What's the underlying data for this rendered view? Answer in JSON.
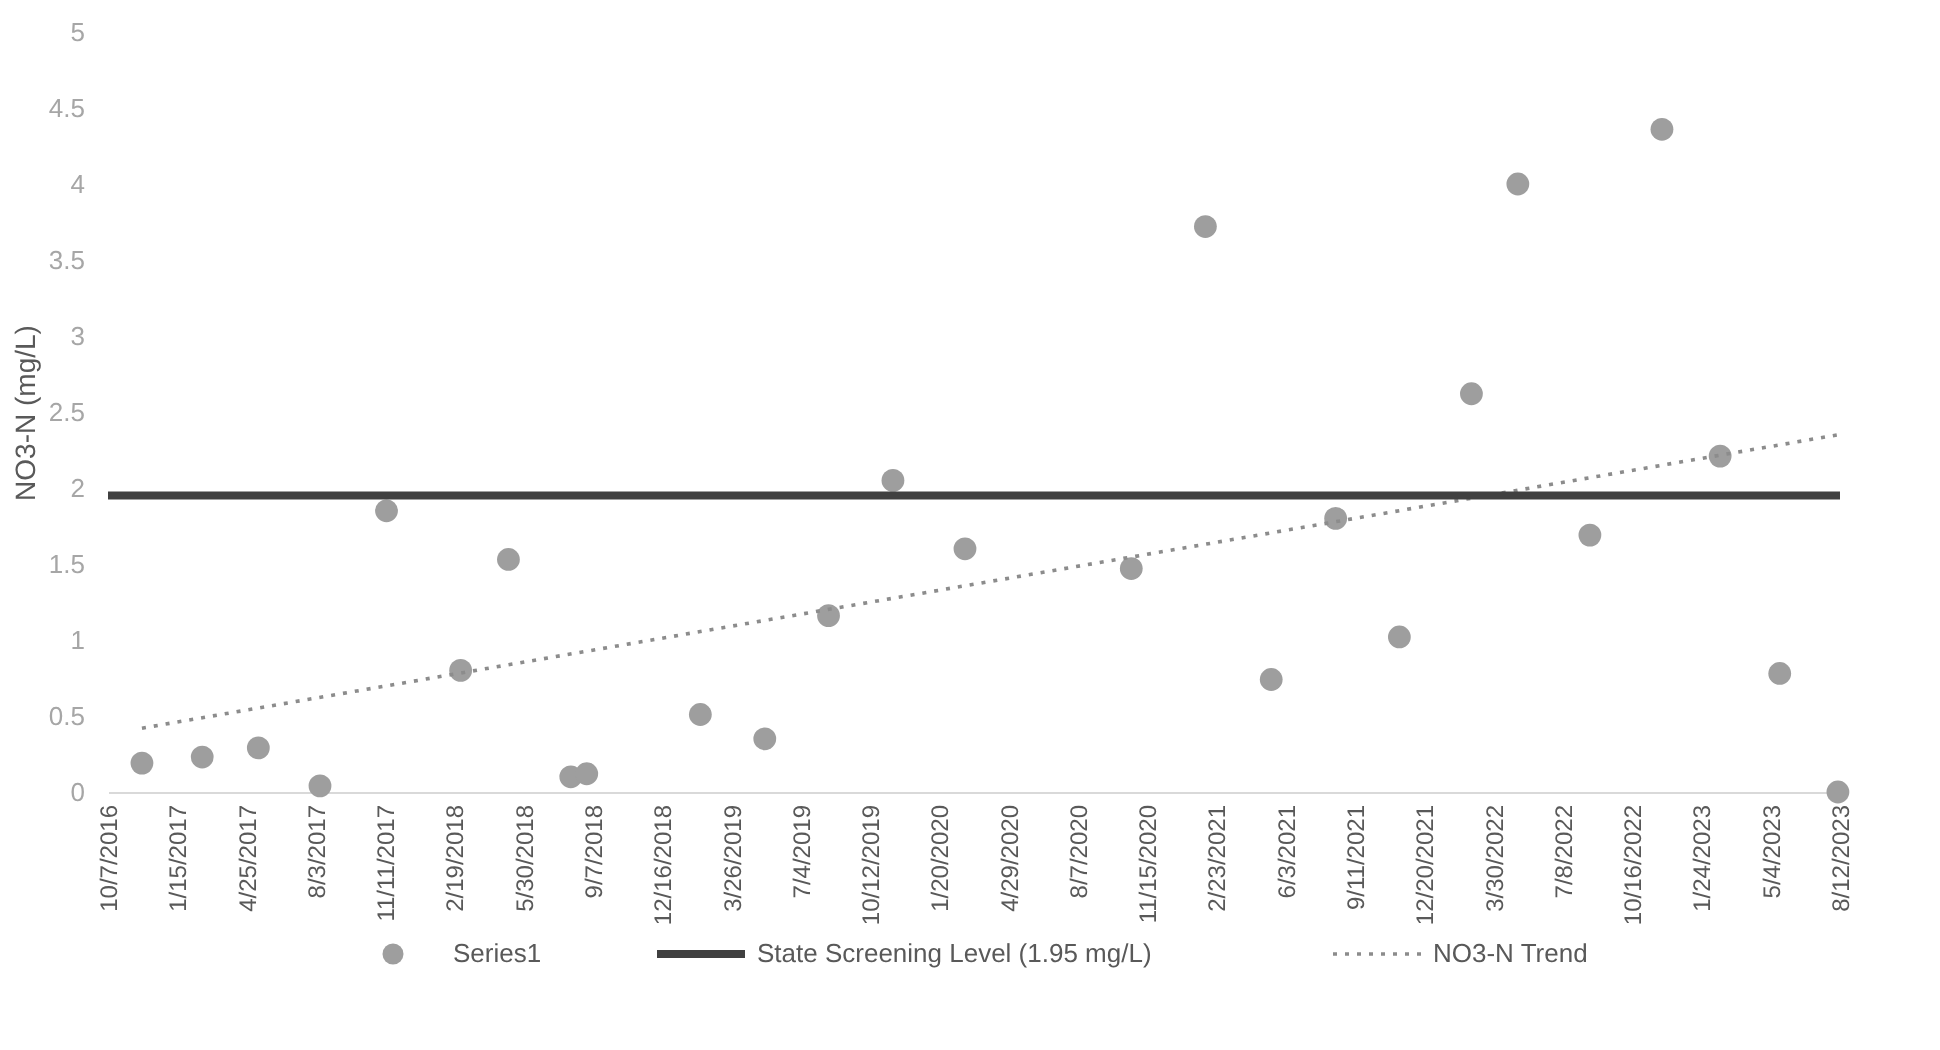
{
  "chart_data": {
    "type": "scatter",
    "ylabel": "NO3-N (mg/L)",
    "x": [
      "2016-11-25",
      "2017-02-20",
      "2017-05-12",
      "2017-08-09",
      "2017-11-13",
      "2018-02-28",
      "2018-05-08",
      "2018-08-06",
      "2018-08-29",
      "2019-02-09",
      "2019-05-13",
      "2019-08-13",
      "2019-11-14",
      "2020-02-26",
      "2020-10-23",
      "2021-02-07",
      "2021-05-13",
      "2021-08-14",
      "2021-11-14",
      "2022-02-26",
      "2022-05-04",
      "2022-08-16",
      "2022-11-28",
      "2023-02-20",
      "2023-05-17",
      "2023-08-09"
    ],
    "series": [
      {
        "name": "Series1",
        "color": "#9e9e9e",
        "marker": "circle",
        "values": [
          0.19,
          0.23,
          0.29,
          0.04,
          1.85,
          0.8,
          1.53,
          0.1,
          0.12,
          0.51,
          0.35,
          1.16,
          2.05,
          1.6,
          1.47,
          3.72,
          0.74,
          1.8,
          1.02,
          2.62,
          4.0,
          1.69,
          4.36,
          2.21,
          0.78,
          0.0
        ]
      },
      {
        "name": "NO3-N Trend",
        "color": "#8c8c8c",
        "type": "line",
        "line_style": "dotted",
        "marker": "none",
        "x": [
          "2016-11-25",
          "2023-08-09"
        ],
        "values": [
          0.42,
          2.35
        ]
      }
    ],
    "ref_lines": [
      {
        "axis": "y",
        "value": 1.95,
        "label": "State Screening Level (1.95 mg/L)",
        "color": "#404040",
        "line_style": "solid"
      }
    ],
    "xlim": [
      "2016-10-07",
      "2023-08-12"
    ],
    "xticks": [
      {
        "value": "2016-10-07",
        "label": "10/7/2016"
      },
      {
        "value": "2017-01-15",
        "label": "1/15/2017"
      },
      {
        "value": "2017-04-25",
        "label": "4/25/2017"
      },
      {
        "value": "2017-08-03",
        "label": "8/3/2017"
      },
      {
        "value": "2017-11-11",
        "label": "11/11/2017"
      },
      {
        "value": "2018-02-19",
        "label": "2/19/2018"
      },
      {
        "value": "2018-05-30",
        "label": "5/30/2018"
      },
      {
        "value": "2018-09-07",
        "label": "9/7/2018"
      },
      {
        "value": "2018-12-16",
        "label": "12/16/2018"
      },
      {
        "value": "2019-03-26",
        "label": "3/26/2019"
      },
      {
        "value": "2019-07-04",
        "label": "7/4/2019"
      },
      {
        "value": "2019-10-12",
        "label": "10/12/2019"
      },
      {
        "value": "2020-01-20",
        "label": "1/20/2020"
      },
      {
        "value": "2020-04-29",
        "label": "4/29/2020"
      },
      {
        "value": "2020-08-07",
        "label": "8/7/2020"
      },
      {
        "value": "2020-11-15",
        "label": "11/15/2020"
      },
      {
        "value": "2021-02-23",
        "label": "2/23/2021"
      },
      {
        "value": "2021-06-03",
        "label": "6/3/2021"
      },
      {
        "value": "2021-09-11",
        "label": "9/11/2021"
      },
      {
        "value": "2021-12-20",
        "label": "12/20/2021"
      },
      {
        "value": "2022-03-30",
        "label": "3/30/2022"
      },
      {
        "value": "2022-07-08",
        "label": "7/8/2022"
      },
      {
        "value": "2022-10-16",
        "label": "10/16/2022"
      },
      {
        "value": "2023-01-24",
        "label": "1/24/2023"
      },
      {
        "value": "2023-05-04",
        "label": "5/4/2023"
      },
      {
        "value": "2023-08-12",
        "label": "8/12/2023"
      }
    ],
    "ylim": [
      0,
      5
    ],
    "yticks": [
      0,
      0.5,
      1,
      1.5,
      2,
      2.5,
      3,
      3.5,
      4,
      4.5,
      5
    ],
    "grid": false,
    "legend": "bottom"
  }
}
